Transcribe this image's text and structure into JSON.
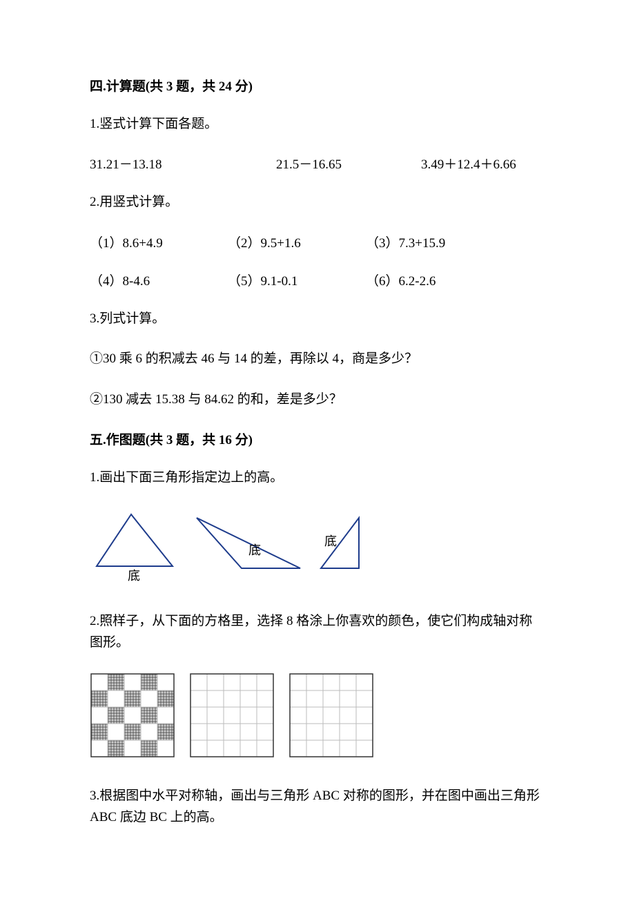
{
  "section4": {
    "header": "四.计算题(共 3 题，共 24 分)",
    "q1": {
      "text": "1.竖式计算下面各题。",
      "items": [
        "31.21－13.18",
        "21.5－16.65",
        "3.49＋12.4＋6.66"
      ]
    },
    "q2": {
      "text": "2.用竖式计算。",
      "row1": [
        "（1）8.6+4.9",
        "（2）9.5+1.6",
        "（3）7.3+15.9"
      ],
      "row2": [
        "（4）8-4.6",
        "（5）9.1-0.1",
        "（6）6.2-2.6"
      ]
    },
    "q3": {
      "text": "3.列式计算。",
      "sub1": "①30 乘 6 的积减去 46 与 14 的差，再除以 4，商是多少？",
      "sub2": "②130 减去 15.38 与 84.62 的和，差是多少？"
    }
  },
  "section5": {
    "header": "五.作图题(共 3 题，共 16 分)",
    "q1": {
      "text": "1.画出下面三角形指定边上的高。",
      "label_base": "底",
      "triangle_stroke": "#1e3c8c",
      "triangle_stroke_width": 2,
      "label_font_size": 18
    },
    "q2": {
      "text": "2.照样子，从下面的方格里，选择 8 格涂上你喜欢的颜色，使它们构成轴对称图形。",
      "grid": {
        "cells": 5,
        "cell_size": 24,
        "stroke": "#bbbbbb",
        "outer_stroke": "#333333",
        "filled_cells": [
          [
            0,
            1
          ],
          [
            0,
            3
          ],
          [
            1,
            0
          ],
          [
            1,
            2
          ],
          [
            1,
            4
          ],
          [
            2,
            1
          ],
          [
            2,
            3
          ],
          [
            3,
            0
          ],
          [
            3,
            2
          ],
          [
            3,
            4
          ],
          [
            4,
            1
          ],
          [
            4,
            3
          ]
        ],
        "fill_pattern_color": "#999999"
      }
    },
    "q3": {
      "text": "3.根据图中水平对称轴，画出与三角形 ABC 对称的图形，并在图中画出三角形ABC 底边 BC 上的高。"
    }
  }
}
